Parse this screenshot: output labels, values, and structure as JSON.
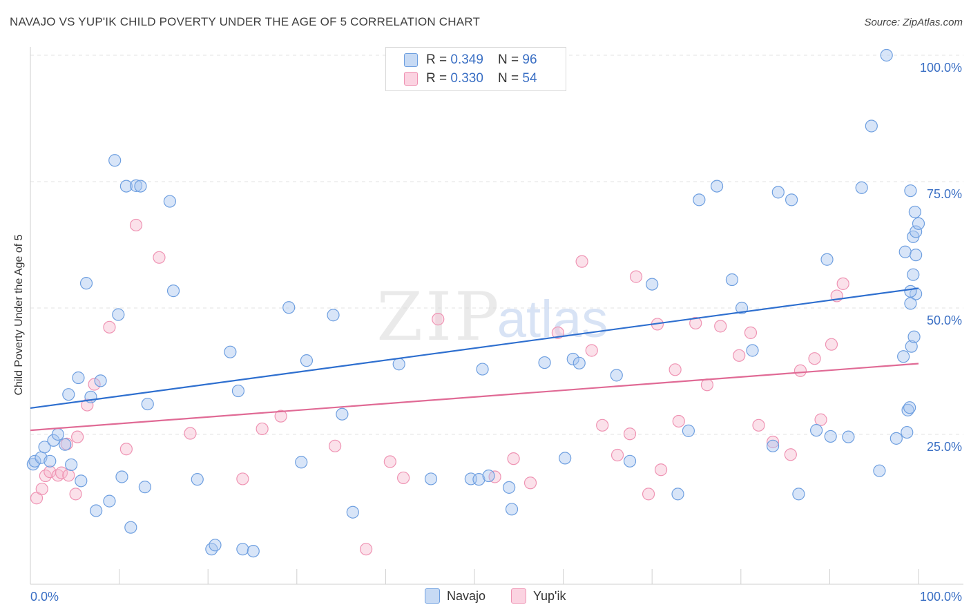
{
  "header": {
    "title": "NAVAJO VS YUP'IK CHILD POVERTY UNDER THE AGE OF 5 CORRELATION CHART",
    "source": "Source: ZipAtlas.com"
  },
  "watermark": {
    "zip": "ZIP",
    "atlas": "atlas"
  },
  "legend": {
    "rows": [
      {
        "r_label": "R = ",
        "r_value": "0.349",
        "n_label": "N = ",
        "n_value": "96"
      },
      {
        "r_label": "R = ",
        "r_value": "0.330",
        "n_label": "N = ",
        "n_value": "54"
      }
    ]
  },
  "bottom_legend": {
    "navajo": "Navajo",
    "yupik": "Yup'ik"
  },
  "chart_data": {
    "type": "scatter",
    "title": "NAVAJO VS YUP'IK CHILD POVERTY UNDER THE AGE OF 5 CORRELATION CHART",
    "xlabel": "",
    "ylabel": "Child Poverty Under the Age of 5",
    "xlim": [
      0,
      100
    ],
    "ylim": [
      0,
      100
    ],
    "x_tick_labels": [
      "0.0%",
      "100.0%"
    ],
    "y_tick_labels": [
      "25.0%",
      "50.0%",
      "75.0%",
      "100.0%"
    ],
    "y_ticks": [
      25,
      50,
      75,
      100
    ],
    "grid": true,
    "colors": {
      "navajo": "#6e9fe0",
      "navajo_line": "#2e6fcf",
      "yupik": "#ef93b3",
      "yupik_line": "#e06a95",
      "axis_text": "#3a6fc4"
    },
    "series": [
      {
        "name": "Navajo",
        "R": 0.349,
        "N": 96,
        "trend": [
          [
            0,
            30.2
          ],
          [
            100,
            53.9
          ]
        ],
        "points": [
          [
            0.3,
            19.1
          ],
          [
            0.5,
            19.7
          ],
          [
            1.2,
            20.4
          ],
          [
            1.6,
            22.5
          ],
          [
            2.2,
            19.7
          ],
          [
            2.6,
            23.8
          ],
          [
            3.1,
            25.0
          ],
          [
            3.9,
            23.0
          ],
          [
            4.3,
            32.9
          ],
          [
            4.6,
            19.0
          ],
          [
            5.4,
            36.2
          ],
          [
            5.7,
            15.8
          ],
          [
            6.3,
            54.9
          ],
          [
            6.8,
            32.4
          ],
          [
            7.4,
            9.9
          ],
          [
            7.9,
            35.6
          ],
          [
            8.9,
            11.8
          ],
          [
            9.5,
            79.2
          ],
          [
            9.9,
            48.7
          ],
          [
            10.3,
            16.6
          ],
          [
            10.8,
            74.1
          ],
          [
            11.3,
            6.6
          ],
          [
            11.9,
            74.2
          ],
          [
            12.4,
            74.1
          ],
          [
            12.9,
            14.6
          ],
          [
            13.2,
            31.0
          ],
          [
            15.7,
            71.1
          ],
          [
            16.1,
            53.4
          ],
          [
            18.8,
            16.1
          ],
          [
            20.4,
            2.3
          ],
          [
            20.8,
            3.1
          ],
          [
            22.5,
            41.3
          ],
          [
            23.4,
            33.6
          ],
          [
            23.9,
            2.3
          ],
          [
            25.1,
            1.9
          ],
          [
            29.1,
            50.1
          ],
          [
            30.5,
            19.5
          ],
          [
            31.1,
            39.6
          ],
          [
            34.1,
            48.6
          ],
          [
            35.1,
            29.0
          ],
          [
            36.3,
            9.6
          ],
          [
            41.5,
            38.9
          ],
          [
            42.6,
            100.0
          ],
          [
            44.8,
            100.0
          ],
          [
            45.1,
            16.2
          ],
          [
            49.6,
            16.2
          ],
          [
            50.5,
            16.1
          ],
          [
            50.9,
            37.9
          ],
          [
            51.6,
            16.8
          ],
          [
            53.9,
            14.5
          ],
          [
            54.2,
            10.2
          ],
          [
            57.6,
            100.0
          ],
          [
            57.9,
            39.2
          ],
          [
            60.2,
            20.3
          ],
          [
            61.1,
            39.9
          ],
          [
            61.8,
            39.1
          ],
          [
            66.0,
            36.7
          ],
          [
            67.5,
            19.7
          ],
          [
            70.0,
            54.7
          ],
          [
            72.9,
            13.2
          ],
          [
            74.1,
            25.7
          ],
          [
            75.3,
            71.4
          ],
          [
            77.3,
            74.1
          ],
          [
            79.0,
            55.6
          ],
          [
            80.1,
            50.0
          ],
          [
            81.3,
            41.6
          ],
          [
            83.6,
            22.7
          ],
          [
            84.2,
            72.9
          ],
          [
            85.7,
            71.4
          ],
          [
            86.5,
            13.2
          ],
          [
            88.5,
            25.8
          ],
          [
            89.7,
            59.6
          ],
          [
            90.1,
            24.6
          ],
          [
            92.1,
            24.5
          ],
          [
            93.6,
            73.8
          ],
          [
            94.7,
            86.0
          ],
          [
            95.6,
            17.8
          ],
          [
            96.4,
            100.0
          ],
          [
            97.5,
            24.2
          ],
          [
            98.5,
            61.1
          ],
          [
            99.7,
            52.8
          ],
          [
            99.1,
            53.3
          ],
          [
            99.4,
            56.6
          ],
          [
            99.7,
            60.5
          ],
          [
            99.4,
            64.1
          ],
          [
            99.7,
            65.1
          ],
          [
            99.1,
            73.2
          ],
          [
            99.6,
            69.0
          ],
          [
            100.0,
            66.7
          ],
          [
            98.8,
            29.8
          ],
          [
            99.0,
            30.3
          ],
          [
            98.7,
            25.4
          ],
          [
            99.2,
            42.4
          ],
          [
            98.3,
            40.4
          ],
          [
            99.5,
            44.3
          ],
          [
            99.1,
            50.9
          ]
        ]
      },
      {
        "name": "Yup'ik",
        "R": 0.33,
        "N": 54,
        "trend": [
          [
            0,
            25.8
          ],
          [
            100,
            39.0
          ]
        ],
        "points": [
          [
            0.7,
            12.4
          ],
          [
            1.3,
            14.2
          ],
          [
            1.7,
            16.8
          ],
          [
            2.2,
            17.6
          ],
          [
            3.1,
            16.9
          ],
          [
            3.5,
            17.4
          ],
          [
            4.1,
            23.1
          ],
          [
            4.3,
            16.9
          ],
          [
            5.1,
            13.2
          ],
          [
            5.3,
            24.5
          ],
          [
            6.4,
            30.8
          ],
          [
            7.2,
            34.9
          ],
          [
            8.9,
            46.2
          ],
          [
            10.8,
            22.1
          ],
          [
            11.9,
            66.4
          ],
          [
            14.5,
            60.0
          ],
          [
            18.0,
            25.2
          ],
          [
            23.9,
            16.2
          ],
          [
            26.1,
            26.1
          ],
          [
            28.2,
            28.6
          ],
          [
            34.3,
            22.7
          ],
          [
            37.8,
            2.3
          ],
          [
            40.5,
            19.6
          ],
          [
            42.0,
            16.4
          ],
          [
            45.9,
            47.8
          ],
          [
            52.3,
            16.6
          ],
          [
            54.4,
            20.2
          ],
          [
            56.3,
            15.4
          ],
          [
            59.4,
            45.1
          ],
          [
            62.1,
            59.2
          ],
          [
            63.2,
            41.6
          ],
          [
            64.4,
            26.8
          ],
          [
            66.1,
            20.9
          ],
          [
            67.5,
            25.1
          ],
          [
            68.2,
            56.2
          ],
          [
            69.6,
            13.2
          ],
          [
            70.6,
            46.8
          ],
          [
            71.0,
            18.0
          ],
          [
            72.6,
            37.8
          ],
          [
            73.0,
            27.6
          ],
          [
            74.9,
            47.0
          ],
          [
            76.2,
            34.8
          ],
          [
            77.7,
            46.4
          ],
          [
            79.8,
            40.6
          ],
          [
            81.1,
            45.1
          ],
          [
            82.0,
            26.8
          ],
          [
            83.6,
            23.5
          ],
          [
            85.6,
            21.0
          ],
          [
            86.7,
            37.6
          ],
          [
            88.3,
            40.0
          ],
          [
            89.0,
            27.9
          ],
          [
            90.2,
            42.8
          ],
          [
            90.8,
            52.4
          ],
          [
            91.5,
            54.8
          ]
        ]
      }
    ]
  }
}
